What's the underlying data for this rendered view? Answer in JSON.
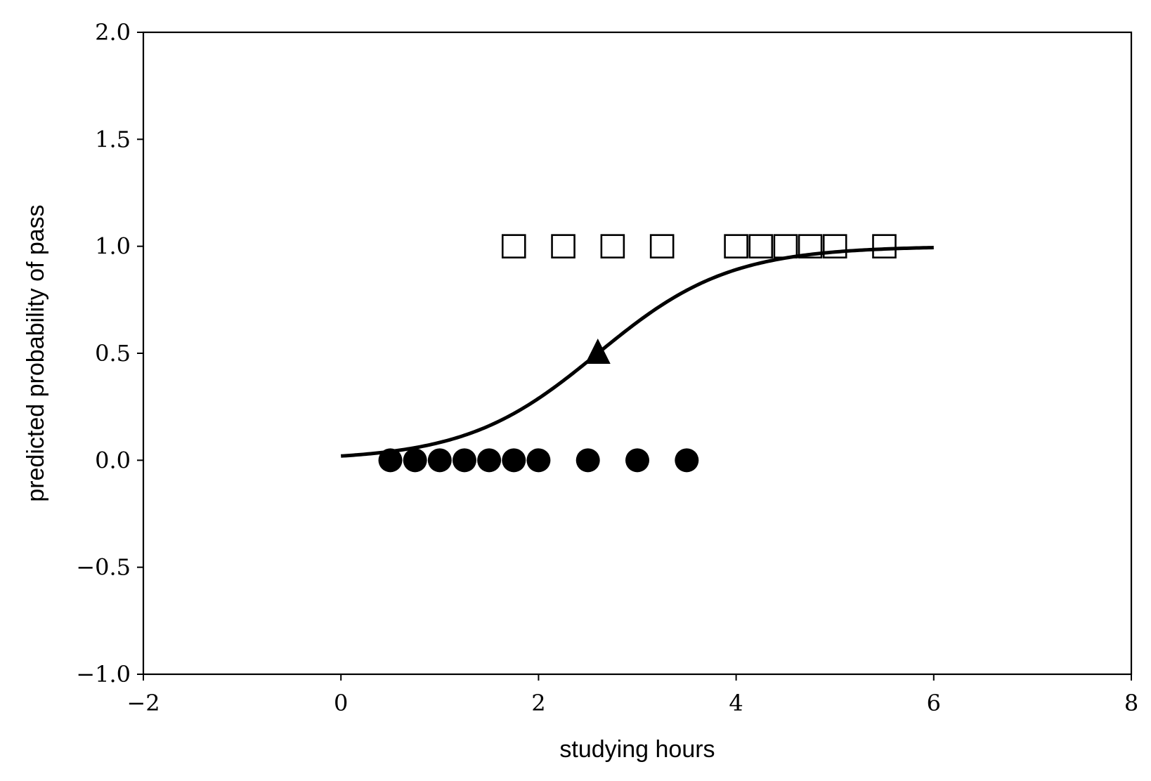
{
  "chart_data": {
    "type": "scatter",
    "xlabel": "studying hours",
    "ylabel": "predicted probability of pass",
    "xlim": [
      -2,
      8
    ],
    "ylim": [
      -1.0,
      2.0
    ],
    "x_ticks": [
      {
        "value": -2,
        "label": "−2"
      },
      {
        "value": 0,
        "label": "0"
      },
      {
        "value": 2,
        "label": "2"
      },
      {
        "value": 4,
        "label": "4"
      },
      {
        "value": 6,
        "label": "6"
      },
      {
        "value": 8,
        "label": "8"
      }
    ],
    "y_ticks": [
      {
        "value": -1.0,
        "label": "−1.0"
      },
      {
        "value": -0.5,
        "label": "−0.5"
      },
      {
        "value": 0.0,
        "label": "0.0"
      },
      {
        "value": 0.5,
        "label": "0.5"
      },
      {
        "value": 1.0,
        "label": "1.0"
      },
      {
        "value": 1.5,
        "label": "1.5"
      },
      {
        "value": 2.0,
        "label": "2.0"
      }
    ],
    "grid": false,
    "series": [
      {
        "marker": "circle",
        "filled": true,
        "x": [
          0.5,
          0.75,
          1.0,
          1.25,
          1.5,
          1.75,
          2.0,
          2.5,
          3.0,
          3.5
        ],
        "y": [
          0,
          0,
          0,
          0,
          0,
          0,
          0,
          0,
          0,
          0
        ]
      },
      {
        "marker": "square",
        "filled": false,
        "x": [
          1.75,
          2.25,
          2.75,
          3.25,
          4.0,
          4.25,
          4.5,
          4.75,
          5.0,
          5.5
        ],
        "y": [
          1,
          1,
          1,
          1,
          1,
          1,
          1,
          1,
          1,
          1
        ]
      },
      {
        "marker": "triangle",
        "filled": true,
        "x": [
          2.6
        ],
        "y": [
          0.5
        ]
      }
    ],
    "curve": {
      "type": "logistic",
      "x_range": [
        0,
        6
      ],
      "midpoint": 2.6,
      "slope": 1.5
    },
    "colors": {
      "marks": "#000000",
      "background": "#ffffff"
    }
  }
}
